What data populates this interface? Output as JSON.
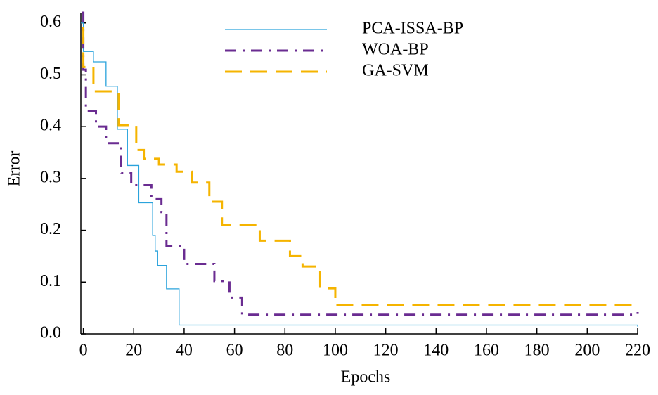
{
  "chart_data": {
    "type": "line",
    "drawstyle": "steps-post",
    "xlabel": "Epochs",
    "ylabel": "Error",
    "xlim": [
      -1,
      220
    ],
    "ylim": [
      0,
      0.62
    ],
    "xticks": [
      0,
      20,
      40,
      60,
      80,
      100,
      120,
      140,
      160,
      180,
      200,
      220
    ],
    "yticks": [
      {
        "value": 0,
        "label": "0.0"
      },
      0.1,
      0.2,
      0.3,
      0.4,
      0.5,
      0.6
    ],
    "grid": false,
    "legend": "top",
    "series": [
      {
        "name": "PCA-ISSA-BP",
        "color": "#2aa3dc",
        "linestyle": "solid",
        "x": [
          -1,
          0,
          4,
          9,
          13.5,
          17.5,
          22,
          27.5,
          28.5,
          29.5,
          33,
          38,
          220
        ],
        "values": [
          0.6,
          0.545,
          0.525,
          0.478,
          0.395,
          0.325,
          0.253,
          0.19,
          0.16,
          0.132,
          0.087,
          0.017,
          0.014
        ]
      },
      {
        "name": "WOA-BP",
        "color": "#6a2c91",
        "linestyle": "dashdot",
        "x": [
          -0.5,
          0,
          1,
          5,
          9,
          15,
          19,
          27,
          31,
          33,
          40,
          52,
          58,
          63,
          220
        ],
        "values": [
          0.62,
          0.51,
          0.43,
          0.4,
          0.368,
          0.31,
          0.287,
          0.26,
          0.235,
          0.17,
          0.135,
          0.102,
          0.07,
          0.037,
          0.042
        ]
      },
      {
        "name": "GA-SVM",
        "color": "#f5b400",
        "linestyle": "dashed",
        "x": [
          -0.5,
          0,
          4,
          14,
          21,
          24,
          30,
          37,
          43,
          50,
          55,
          70,
          82,
          87,
          94,
          100,
          220
        ],
        "values": [
          0.59,
          0.515,
          0.468,
          0.403,
          0.355,
          0.338,
          0.327,
          0.313,
          0.292,
          0.255,
          0.21,
          0.18,
          0.15,
          0.13,
          0.088,
          0.055,
          0.055
        ]
      }
    ]
  }
}
